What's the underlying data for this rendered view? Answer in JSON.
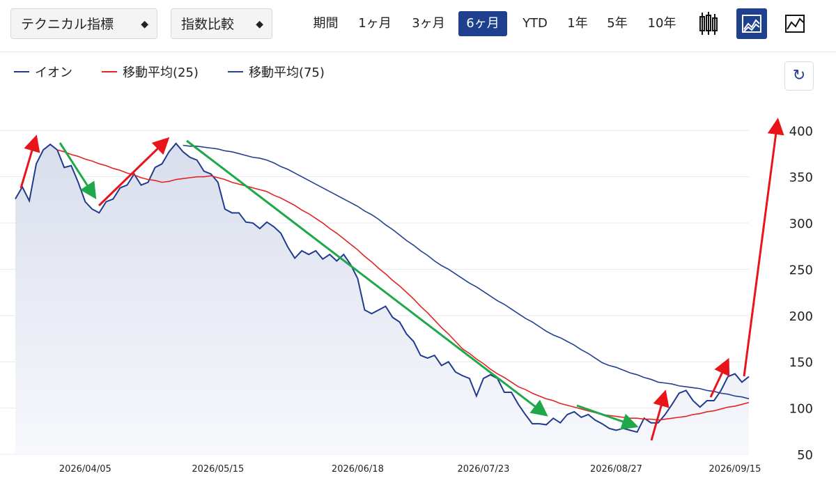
{
  "toolbar": {
    "indicator": "テクニカル指標",
    "compare": "指数比較",
    "period_label": "期間",
    "periods": [
      "1ヶ月",
      "3ヶ月",
      "6ヶ月",
      "YTD",
      "1年",
      "5年",
      "10年"
    ]
  },
  "chart_data": {
    "type": "line",
    "ylim": [
      50,
      413
    ],
    "yticks": [
      50,
      100,
      150,
      200,
      250,
      300,
      350,
      400
    ],
    "grid": true,
    "area_under_first_series": true,
    "categories": [
      null,
      null,
      null,
      null,
      null,
      null,
      null,
      null,
      null,
      null,
      "2026/04/05",
      null,
      null,
      null,
      null,
      null,
      null,
      null,
      null,
      null,
      null,
      null,
      null,
      null,
      null,
      null,
      null,
      null,
      null,
      "2026/05/15",
      null,
      null,
      null,
      null,
      null,
      null,
      null,
      null,
      null,
      null,
      null,
      null,
      null,
      null,
      null,
      null,
      null,
      null,
      null,
      "2026/06/18",
      null,
      null,
      null,
      null,
      null,
      null,
      null,
      null,
      null,
      null,
      null,
      null,
      null,
      null,
      null,
      null,
      null,
      "2026/07/23",
      null,
      null,
      null,
      null,
      null,
      null,
      null,
      null,
      null,
      null,
      null,
      null,
      null,
      null,
      null,
      null,
      null,
      null,
      "2026/08/27",
      null,
      null,
      null,
      null,
      null,
      null,
      null,
      null,
      null,
      null,
      null,
      null,
      null,
      null,
      null,
      null,
      "2026/09/15",
      null,
      null
    ],
    "series": [
      {
        "name": "イオン",
        "color": "#1f3a8f",
        "values": [
          326,
          339,
          324,
          364,
          379,
          385,
          379,
          360,
          362,
          344,
          323,
          315,
          311,
          323,
          326,
          338,
          341,
          353,
          341,
          344,
          360,
          364,
          377,
          386,
          377,
          371,
          368,
          356,
          353,
          344,
          315,
          311,
          311,
          301,
          300,
          294,
          301,
          296,
          289,
          274,
          262,
          270,
          266,
          270,
          261,
          266,
          259,
          266,
          255,
          240,
          206,
          202,
          206,
          210,
          198,
          193,
          180,
          172,
          157,
          154,
          157,
          146,
          150,
          139,
          135,
          132,
          113,
          132,
          136,
          132,
          117,
          117,
          104,
          93,
          83,
          83,
          82,
          89,
          84,
          93,
          96,
          90,
          93,
          87,
          83,
          78,
          76,
          78,
          76,
          74,
          89,
          84,
          84,
          93,
          104,
          116,
          119,
          108,
          101,
          108,
          108,
          119,
          134,
          137,
          128,
          134
        ]
      },
      {
        "name": "移動平均(25)",
        "color": "#e32222",
        "values": [
          null,
          null,
          null,
          null,
          null,
          null,
          379,
          377,
          374,
          372,
          369,
          367,
          364,
          362,
          359,
          357,
          354,
          352,
          349,
          347,
          346,
          344,
          345,
          347,
          348,
          349,
          350,
          350,
          351,
          349,
          347,
          344,
          342,
          340,
          338,
          336,
          334,
          330,
          327,
          323,
          319,
          314,
          310,
          305,
          300,
          294,
          289,
          283,
          277,
          271,
          264,
          258,
          251,
          245,
          238,
          232,
          225,
          218,
          210,
          203,
          195,
          187,
          180,
          172,
          164,
          159,
          153,
          148,
          142,
          137,
          133,
          128,
          123,
          120,
          116,
          113,
          110,
          108,
          105,
          103,
          101,
          99,
          97,
          95,
          93,
          92,
          91,
          90,
          89,
          89,
          88,
          88,
          87,
          88,
          89,
          90,
          91,
          93,
          94,
          96,
          97,
          99,
          101,
          102,
          104,
          106
        ]
      },
      {
        "name": "移動平均(75)",
        "color": "#23408f",
        "values": [
          null,
          null,
          null,
          null,
          null,
          null,
          null,
          null,
          null,
          null,
          null,
          null,
          null,
          null,
          null,
          null,
          null,
          null,
          null,
          null,
          null,
          null,
          null,
          null,
          384,
          383,
          383,
          382,
          381,
          380,
          378,
          377,
          375,
          373,
          371,
          370,
          368,
          365,
          361,
          358,
          354,
          350,
          346,
          342,
          338,
          334,
          330,
          326,
          322,
          318,
          313,
          309,
          304,
          298,
          293,
          287,
          281,
          276,
          270,
          265,
          259,
          254,
          250,
          245,
          240,
          235,
          231,
          226,
          221,
          216,
          212,
          207,
          202,
          197,
          193,
          188,
          183,
          179,
          176,
          172,
          168,
          163,
          159,
          154,
          149,
          146,
          144,
          141,
          138,
          136,
          133,
          131,
          128,
          127,
          126,
          124,
          123,
          122,
          121,
          119,
          118,
          116,
          115,
          113,
          112,
          110
        ]
      }
    ]
  }
}
